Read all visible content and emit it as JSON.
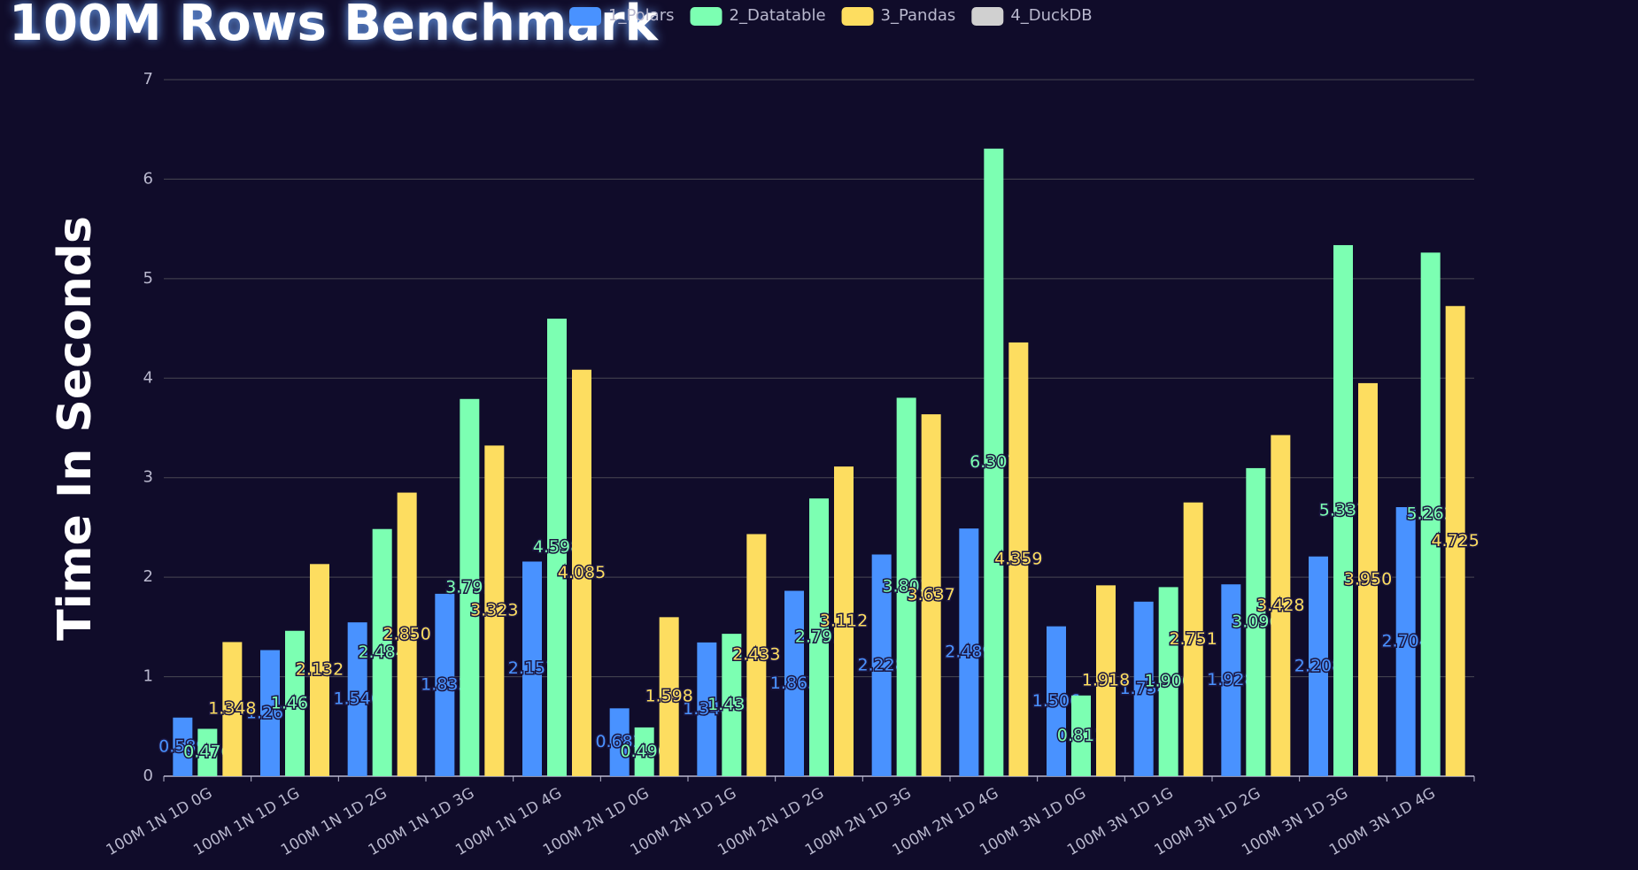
{
  "chart_data": {
    "type": "bar",
    "title": "100M Rows Benchmark",
    "y_label": "Time In Seconds",
    "categories": [
      "100M 1N 1D 0G",
      "100M 1N 1D 1G",
      "100M 1N 1D 2G",
      "100M 1N 1D 3G",
      "100M 1N 1D 4G",
      "100M 2N 1D 0G",
      "100M 2N 1D 1G",
      "100M 2N 1D 2G",
      "100M 2N 1D 3G",
      "100M 2N 1D 4G",
      "100M 3N 1D 0G",
      "100M 3N 1D 1G",
      "100M 3N 1D 2G",
      "100M 3N 1D 3G",
      "100M 3N 1D 4G"
    ],
    "series": [
      {
        "name": "1_Polars",
        "color": "#4992ff",
        "values": [
          0.589,
          1.267,
          1.546,
          1.833,
          2.157,
          0.682,
          1.344,
          1.863,
          2.228,
          2.489,
          1.506,
          1.754,
          1.928,
          2.208,
          2.704
        ],
        "value_labels": [
          "0.589",
          "1.267",
          "1.546",
          "1.833",
          "2.157",
          "0.682",
          "1.344",
          "1.863",
          "2.228",
          "2.489",
          "1.506",
          "1.754",
          "1.928",
          "2.208",
          "2.704"
        ]
      },
      {
        "name": "2_Datatable",
        "color": "#7cffb2",
        "values": [
          0.476,
          1.461,
          2.484,
          3.791,
          4.598,
          0.49,
          1.431,
          2.791,
          3.803,
          6.307,
          0.811,
          1.9,
          3.096,
          5.337,
          5.262
        ],
        "value_labels": [
          "0.476",
          "1.461",
          "2.484",
          "3.791",
          "4.598",
          "0.490",
          "1.431",
          "2.791",
          "3.803",
          "6.307",
          "0.811",
          "1.900",
          "3.096",
          "5.337",
          "5.262"
        ]
      },
      {
        "name": "3_Pandas",
        "color": "#fddd60",
        "values": [
          1.348,
          2.132,
          2.85,
          3.323,
          4.085,
          1.598,
          2.433,
          3.112,
          3.637,
          4.359,
          1.918,
          2.751,
          3.428,
          3.95,
          4.725
        ],
        "value_labels": [
          "1.348",
          "2.132",
          "2.850",
          "3.323",
          "4.085",
          "1.598",
          "2.433",
          "3.112",
          "3.637",
          "4.359",
          "1.918",
          "2.751",
          "3.428",
          "3.950",
          "4.725"
        ]
      },
      {
        "name": "4_DuckDB",
        "color": "#d0d0d0",
        "values": [
          null,
          null,
          null,
          null,
          null,
          null,
          null,
          null,
          null,
          null,
          null,
          null,
          null,
          null,
          null
        ]
      }
    ],
    "ylim": [
      0,
      7
    ],
    "yticks": [
      0,
      1,
      2,
      3,
      4,
      5,
      6,
      7
    ],
    "grid": true
  }
}
